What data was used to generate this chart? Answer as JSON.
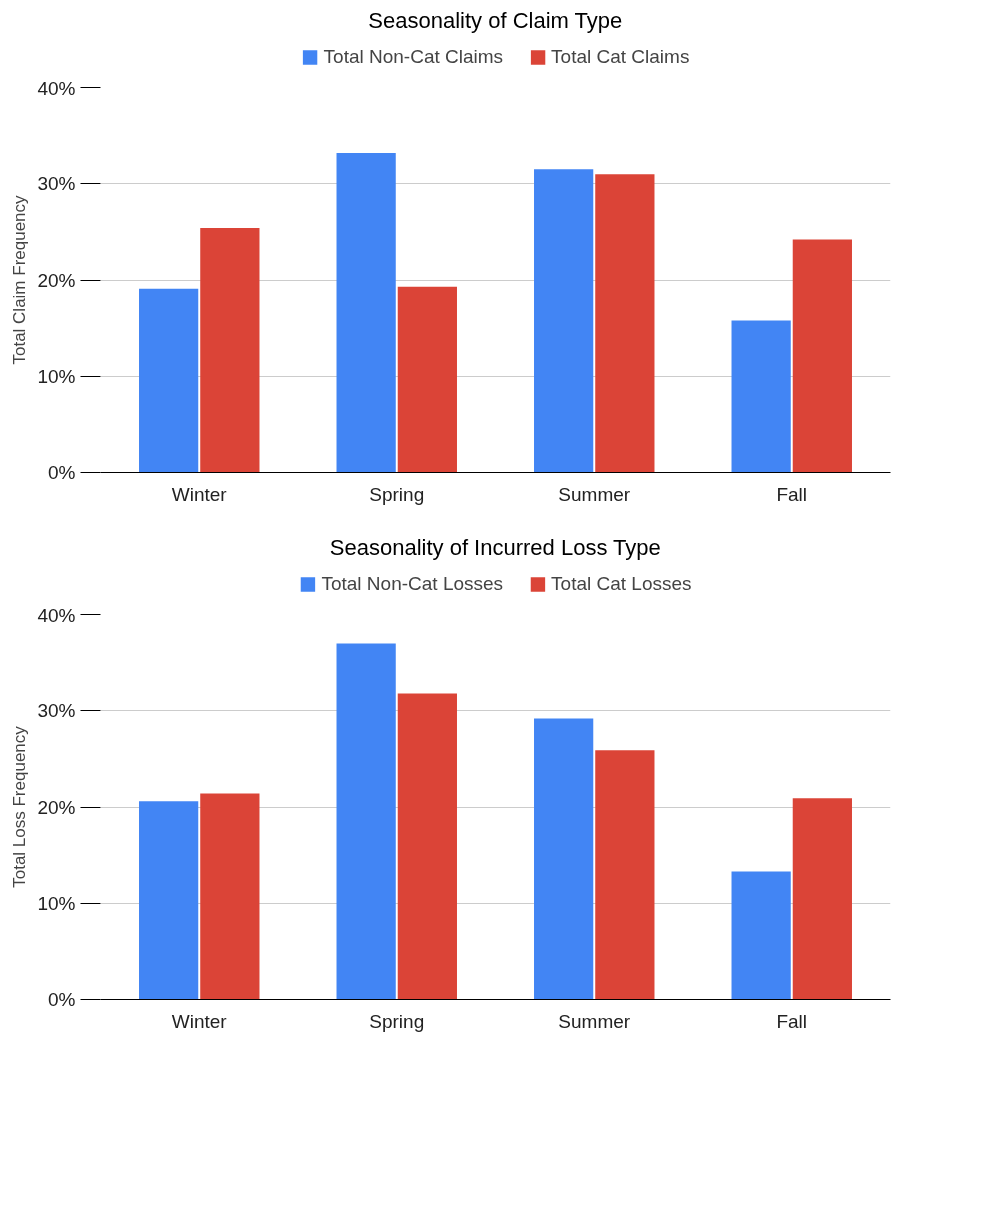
{
  "chart_data": [
    {
      "type": "bar",
      "title": "Seasonality of Claim Type",
      "ylabel": "Total Claim Frequency",
      "categories": [
        "Winter",
        "Spring",
        "Summer",
        "Fall"
      ],
      "series": [
        {
          "name": "Total Non-Cat Claims",
          "color": "#4285f4",
          "values": [
            19.1,
            33.2,
            31.5,
            15.8
          ]
        },
        {
          "name": "Total Cat Claims",
          "color": "#db4437",
          "values": [
            25.4,
            19.3,
            31.0,
            24.2
          ]
        }
      ],
      "ylim": [
        0,
        40
      ],
      "yticks": [
        {
          "value": 0,
          "label": "0%"
        },
        {
          "value": 10,
          "label": "10%"
        },
        {
          "value": 20,
          "label": "20%"
        },
        {
          "value": 30,
          "label": "30%"
        },
        {
          "value": 40,
          "label": "40%"
        }
      ],
      "grid": "y",
      "legend": "top"
    },
    {
      "type": "bar",
      "title": "Seasonality of Incurred Loss Type",
      "ylabel": "Total Loss Frequency",
      "categories": [
        "Winter",
        "Spring",
        "Summer",
        "Fall"
      ],
      "series": [
        {
          "name": "Total Non-Cat Losses",
          "color": "#4285f4",
          "values": [
            20.6,
            37.0,
            29.2,
            13.3
          ]
        },
        {
          "name": "Total Cat Losses",
          "color": "#db4437",
          "values": [
            21.4,
            31.8,
            25.9,
            20.9
          ]
        }
      ],
      "ylim": [
        0,
        40
      ],
      "yticks": [
        {
          "value": 0,
          "label": "0%"
        },
        {
          "value": 10,
          "label": "10%"
        },
        {
          "value": 20,
          "label": "20%"
        },
        {
          "value": 30,
          "label": "30%"
        },
        {
          "value": 40,
          "label": "40%"
        }
      ],
      "grid": "y",
      "legend": "top"
    }
  ]
}
